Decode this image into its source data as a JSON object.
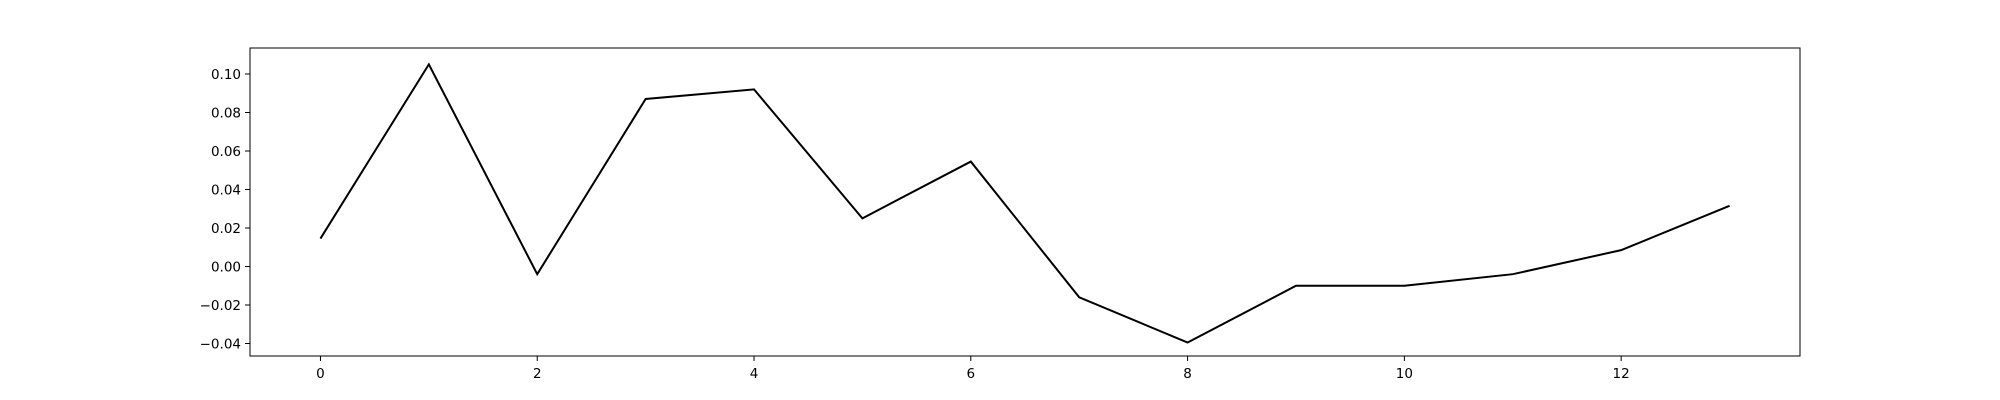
{
  "chart_data": {
    "type": "line",
    "title": "",
    "xlabel": "",
    "ylabel": "",
    "x": [
      0,
      1,
      2,
      3,
      4,
      5,
      6,
      7,
      8,
      9,
      10,
      11,
      12,
      13
    ],
    "series": [
      {
        "values": [
          0.0145,
          0.105,
          -0.004,
          0.087,
          0.092,
          0.025,
          0.0545,
          -0.016,
          -0.0395,
          -0.01,
          -0.01,
          -0.004,
          0.0085,
          0.0315
        ],
        "color": "#000000"
      }
    ],
    "xlim": [
      -0.65,
      13.65
    ],
    "ylim": [
      -0.0465,
      0.1135
    ],
    "xticks": [
      0,
      2,
      4,
      6,
      8,
      10,
      12
    ],
    "xtick_labels": [
      "0",
      "2",
      "4",
      "6",
      "8",
      "10",
      "12"
    ],
    "yticks": [
      -0.04,
      -0.02,
      0.0,
      0.02,
      0.04,
      0.06,
      0.08,
      0.1
    ],
    "ytick_labels": [
      "−0.04",
      "−0.02",
      "0.00",
      "0.02",
      "0.04",
      "0.06",
      "0.08",
      "0.10"
    ],
    "grid": false,
    "legend": "none"
  }
}
